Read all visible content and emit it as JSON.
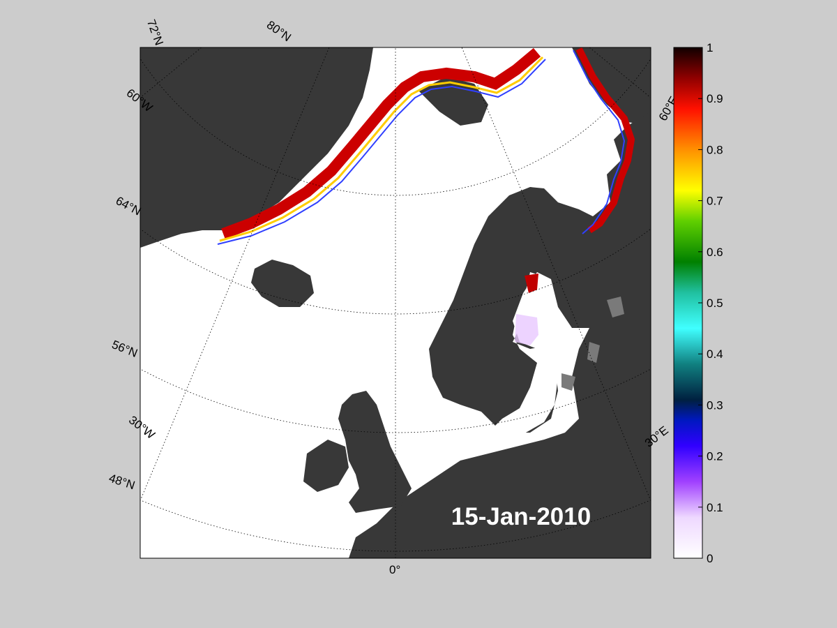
{
  "map": {
    "date": "15-Jan-2010",
    "colors": {
      "land": "#383838",
      "ocean": "#ffffff",
      "lake": "#7a7a7a",
      "frame": "#000000",
      "background": "#cccccc"
    },
    "lat_labels": [
      "72°N",
      "80°N",
      "64°N",
      "56°N",
      "48°N"
    ],
    "lon_labels": [
      "60°W",
      "30°W",
      "0°",
      "30°E",
      "60°E"
    ]
  },
  "colorbar": {
    "min": 0,
    "max": 1,
    "ticks": [
      "0",
      "0.1",
      "0.2",
      "0.3",
      "0.4",
      "0.5",
      "0.6",
      "0.7",
      "0.8",
      "0.9",
      "1"
    ],
    "stops": [
      "#ffffff",
      "#d9a6ff",
      "#8000ff",
      "#2a00ff",
      "#003040",
      "#22cccc",
      "#30e0c0",
      "#008000",
      "#80d000",
      "#ffff00",
      "#ff8000",
      "#ff0000",
      "#800000",
      "#000000"
    ]
  }
}
